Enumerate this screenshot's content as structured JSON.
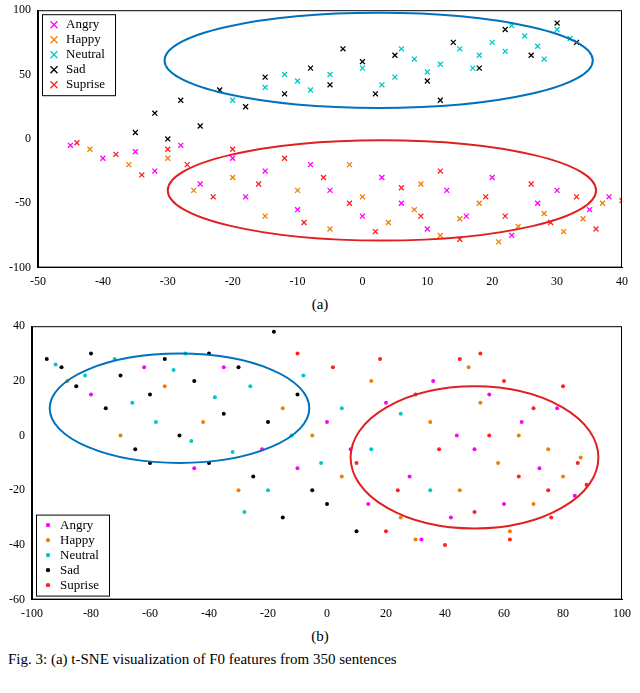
{
  "chart_data": [
    {
      "type": "scatter",
      "label": "(a)",
      "marker": "x",
      "legend": "top left",
      "grid": false,
      "xlim": [
        -50,
        40
      ],
      "xticks": [
        -50,
        -40,
        -30,
        -20,
        -10,
        0,
        10,
        20,
        30,
        40
      ],
      "ylim": [
        -100,
        100
      ],
      "yticks": [
        -100,
        -50,
        0,
        50,
        100
      ],
      "series": [
        {
          "name": "Angry",
          "color": "#ff00ff",
          "x": [
            -45,
            -40,
            -35,
            -32,
            -28,
            -25,
            -20,
            -18,
            -15,
            -10,
            -8,
            -5,
            0,
            3,
            6,
            10,
            13,
            16,
            20,
            23,
            27,
            30,
            35,
            38
          ],
          "values": [
            -5,
            -15,
            -10,
            -25,
            -5,
            -35,
            -15,
            -45,
            -25,
            -55,
            -20,
            -40,
            -60,
            -30,
            -50,
            -70,
            -40,
            -60,
            -30,
            -75,
            -50,
            -40,
            -55,
            -45
          ]
        },
        {
          "name": "Happy",
          "color": "#f07f00",
          "x": [
            -42,
            -36,
            -30,
            -26,
            -20,
            -15,
            -10,
            -5,
            0,
            4,
            8,
            12,
            15,
            18,
            21,
            24,
            28,
            31,
            34,
            37,
            -2,
            9
          ],
          "values": [
            -8,
            -20,
            -15,
            -40,
            -30,
            -60,
            -40,
            -70,
            -45,
            -65,
            -55,
            -75,
            -62,
            -50,
            -80,
            -68,
            -58,
            -72,
            -62,
            -50,
            -20,
            -35
          ]
        },
        {
          "name": "Neutral",
          "color": "#00c8c8",
          "x": [
            -20,
            -15,
            -10,
            -5,
            0,
            5,
            8,
            12,
            15,
            18,
            20,
            22,
            25,
            27,
            30,
            32,
            -8,
            3,
            10,
            28,
            17,
            -12,
            6,
            23
          ],
          "values": [
            30,
            40,
            45,
            50,
            55,
            48,
            62,
            58,
            70,
            65,
            75,
            68,
            80,
            72,
            85,
            78,
            38,
            42,
            52,
            62,
            55,
            50,
            70,
            88
          ]
        },
        {
          "name": "Sad",
          "color": "#000000",
          "x": [
            -32,
            -28,
            -25,
            -22,
            -18,
            -15,
            -12,
            -8,
            -5,
            0,
            2,
            5,
            10,
            14,
            18,
            22,
            26,
            30,
            33,
            -35,
            -30,
            12,
            -3
          ],
          "values": [
            20,
            30,
            10,
            38,
            25,
            48,
            35,
            55,
            42,
            60,
            35,
            65,
            45,
            75,
            55,
            85,
            65,
            90,
            75,
            5,
            0,
            30,
            70
          ]
        },
        {
          "name": "Suprise",
          "color": "#ff2020",
          "x": [
            -44,
            -38,
            -34,
            -30,
            -27,
            -23,
            -20,
            -16,
            -12,
            -9,
            -6,
            -2,
            2,
            6,
            9,
            12,
            15,
            19,
            22,
            26,
            29,
            33,
            36,
            40
          ],
          "values": [
            -3,
            -12,
            -28,
            -8,
            -20,
            -45,
            -8,
            -35,
            -15,
            -65,
            -30,
            -50,
            -72,
            -38,
            -60,
            -25,
            -78,
            -45,
            -60,
            -35,
            -65,
            -45,
            -70,
            -48
          ]
        }
      ],
      "ellipses": [
        {
          "color": "#0072bd",
          "center": [
            2.5,
            61
          ],
          "radii": [
            33,
            37
          ]
        },
        {
          "color": "#e02020",
          "center": [
            3,
            -40
          ],
          "radii": [
            33,
            39
          ]
        }
      ]
    },
    {
      "type": "scatter",
      "label": "(b)",
      "marker": "dot",
      "legend": "bottom left",
      "grid": false,
      "xlim": [
        -100,
        100
      ],
      "xticks": [
        -100,
        -80,
        -60,
        -40,
        -20,
        0,
        20,
        40,
        60,
        80,
        100
      ],
      "ylim": [
        -60,
        40
      ],
      "yticks": [
        -60,
        -40,
        -20,
        0,
        20,
        40
      ],
      "series": [
        {
          "name": "Angry",
          "color": "#ff00ff",
          "x": [
            -80,
            -62,
            -45,
            -35,
            -22,
            -10,
            0,
            8,
            14,
            20,
            28,
            36,
            42,
            50,
            55,
            60,
            66,
            72,
            78,
            84,
            44,
            32
          ],
          "values": [
            15,
            25,
            -12,
            25,
            -5,
            -12,
            5,
            -5,
            -25,
            12,
            -15,
            20,
            -30,
            -5,
            15,
            -25,
            5,
            -12,
            10,
            -22,
            0,
            -38
          ]
        },
        {
          "name": "Happy",
          "color": "#f07f00",
          "x": [
            -88,
            -70,
            -55,
            -42,
            -30,
            -15,
            -5,
            5,
            15,
            25,
            35,
            45,
            52,
            58,
            65,
            70,
            75,
            80,
            86,
            62,
            48,
            30
          ],
          "values": [
            20,
            0,
            18,
            5,
            -20,
            10,
            0,
            -15,
            20,
            -30,
            5,
            -20,
            12,
            -10,
            0,
            -25,
            -5,
            -15,
            -8,
            -35,
            25,
            -38
          ]
        },
        {
          "name": "Neutral",
          "color": "#00c8c8",
          "x": [
            -92,
            -82,
            -72,
            -66,
            -58,
            -52,
            -46,
            -38,
            -32,
            -26,
            -20,
            -12,
            -8,
            -2,
            5,
            15,
            25,
            -48,
            -28,
            35
          ],
          "values": [
            26,
            22,
            28,
            12,
            5,
            24,
            -2,
            14,
            -6,
            18,
            -20,
            0,
            22,
            -10,
            10,
            -5,
            8,
            30,
            -28,
            -20
          ]
        },
        {
          "name": "Sad",
          "color": "#000000",
          "x": [
            -95,
            -90,
            -85,
            -80,
            -75,
            -70,
            -65,
            -60,
            -55,
            -50,
            -45,
            -40,
            -35,
            -30,
            -25,
            -20,
            -15,
            -10,
            -5,
            -18,
            -60,
            -40,
            0,
            10
          ],
          "values": [
            28,
            25,
            18,
            30,
            10,
            22,
            -5,
            15,
            28,
            0,
            20,
            -10,
            8,
            25,
            -15,
            5,
            -30,
            15,
            -20,
            38,
            -10,
            30,
            -25,
            -35
          ]
        },
        {
          "name": "Suprise",
          "color": "#ff2020",
          "x": [
            -10,
            2,
            10,
            18,
            24,
            30,
            38,
            45,
            50,
            55,
            60,
            65,
            70,
            75,
            80,
            85,
            88,
            62,
            40,
            20,
            52,
            76
          ],
          "values": [
            30,
            25,
            -10,
            28,
            -20,
            15,
            -5,
            28,
            -28,
            0,
            20,
            -15,
            10,
            -20,
            18,
            -10,
            -18,
            -38,
            -40,
            -35,
            30,
            -30
          ]
        }
      ],
      "ellipses": [
        {
          "color": "#0072bd",
          "center": [
            -50,
            10
          ],
          "radii": [
            44,
            20
          ]
        },
        {
          "color": "#e02020",
          "center": [
            50,
            -8
          ],
          "radii": [
            42,
            26
          ]
        }
      ]
    }
  ],
  "caption": "Fig. 3: (a) t-SNE visualization of F0 features from 350 sentences"
}
